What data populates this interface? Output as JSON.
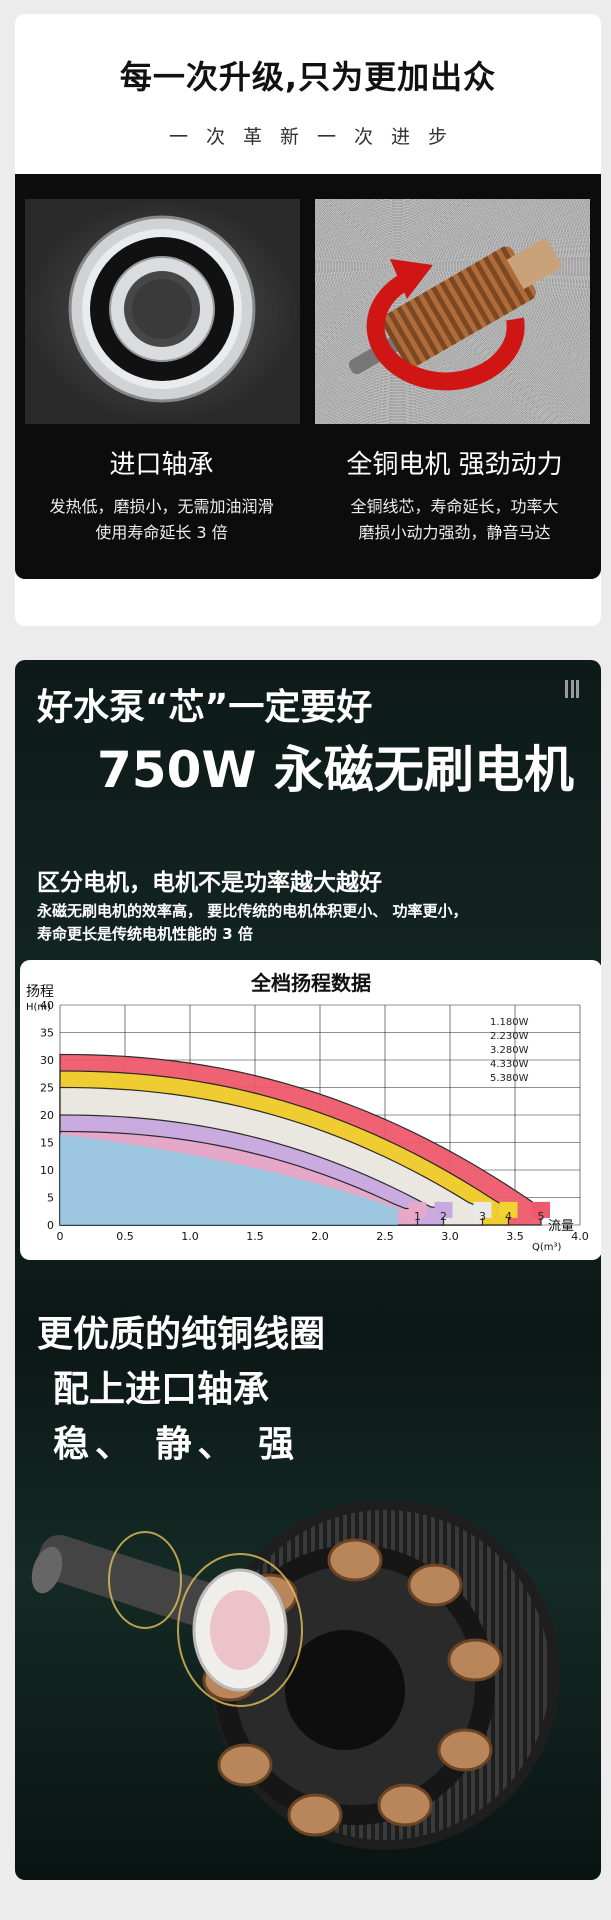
{
  "section1": {
    "title": "每一次升级,只为更加出众",
    "subtitle": "一次革新一次进步",
    "features": [
      {
        "title": "进口轴承",
        "desc_line1": "发热低，磨损小，无需加油润滑",
        "desc_line2": "使用寿命延长 3 倍"
      },
      {
        "title": "全铜电机 强劲动力",
        "desc_line1": "全铜线芯，寿命延长，功率大",
        "desc_line2": "磨损小动力强劲，静音马达"
      }
    ]
  },
  "section2": {
    "title_line1": "好水泵“芯”一定要好",
    "title_line2": "750W 永磁无刷电机",
    "heading": "区分电机，电机不是功率越大越好",
    "desc_line1": "永磁无刷电机的效率高， 要比传统的电机体积更小、 功率更小，",
    "desc_line2": "寿命更长是传统电机性能的 3 倍",
    "slogan_line1": "更优质的纯铜线圈",
    "slogan_line2": "配上进口轴承",
    "slogan_line3": "稳、 静、 强"
  },
  "chart_data": {
    "type": "area",
    "title": "全档扬程数据",
    "ylabel_top": "扬程",
    "ylabel_unit": "H(m)",
    "xlabel_top": "流量",
    "xlabel_unit": "Q(m³)",
    "xlim": [
      0,
      4.0
    ],
    "ylim": [
      0,
      40
    ],
    "x_ticks": [
      "0",
      "0.5",
      "1.0",
      "1.5",
      "2.0",
      "2.5",
      "3.0",
      "3.5",
      "4.0"
    ],
    "y_ticks": [
      "0",
      "5",
      "10",
      "15",
      "20",
      "25",
      "30",
      "35",
      "40"
    ],
    "legend": [
      "1.180W",
      "2.230W",
      "3.280W",
      "4.330W",
      "5.380W"
    ],
    "series": [
      {
        "label": "1",
        "color": "#e8a8c8",
        "y0": 17,
        "x_end": 2.75
      },
      {
        "label": "2",
        "color": "#c8a8e0",
        "y0": 20,
        "x_end": 2.95
      },
      {
        "label": "3",
        "color": "#e9e9e9",
        "y0": 25,
        "x_end": 3.25
      },
      {
        "label": "4",
        "color": "#f1d230",
        "y0": 28,
        "x_end": 3.45
      },
      {
        "label": "5",
        "color": "#ee5a6c",
        "y0": 31,
        "x_end": 3.7
      }
    ]
  }
}
